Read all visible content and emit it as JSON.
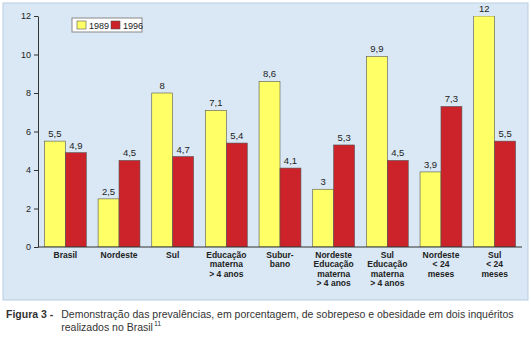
{
  "chart_data": {
    "type": "bar",
    "title": "Figura 3 -",
    "subtitle": "Demonstração das prevalências, em porcentagem, de sobrepeso e obesidade em dois inquéritos realizados no Brasil",
    "annotations": [
      "11"
    ],
    "categories": [
      "Brasil",
      "Nordeste",
      "Sul",
      "Educação\nmaterna\n> 4 anos",
      "Subur-\nbano",
      "Nordeste\nEducação\nmaterna\n> 4 anos",
      "Sul\nEducação\nmaterna\n> 4 anos",
      "Nordeste\n< 24\nmeses",
      "Sul\n< 24\nmeses"
    ],
    "series": [
      {
        "name": "1989",
        "color": "#ffff66",
        "values": [
          5.5,
          2.5,
          8,
          7.1,
          8.6,
          3,
          9.9,
          3.9,
          12
        ],
        "value_labels": [
          "5,5",
          "2,5",
          "8",
          "7,1",
          "8,6",
          "3",
          "9,9",
          "3,9",
          "12"
        ]
      },
      {
        "name": "1996",
        "color": "#cc2229",
        "values": [
          4.9,
          4.5,
          4.7,
          5.4,
          4.1,
          5.3,
          4.5,
          7.3,
          5.5
        ],
        "value_labels": [
          "4,9",
          "4,5",
          "4,7",
          "5,4",
          "4,1",
          "5,3",
          "4,5",
          "7,3",
          "5,5"
        ]
      }
    ],
    "ylim": [
      0,
      12
    ],
    "yticks": [
      0,
      2,
      4,
      6,
      8,
      10,
      12
    ],
    "grid": false,
    "legend": "top-left",
    "data_labels": true
  }
}
